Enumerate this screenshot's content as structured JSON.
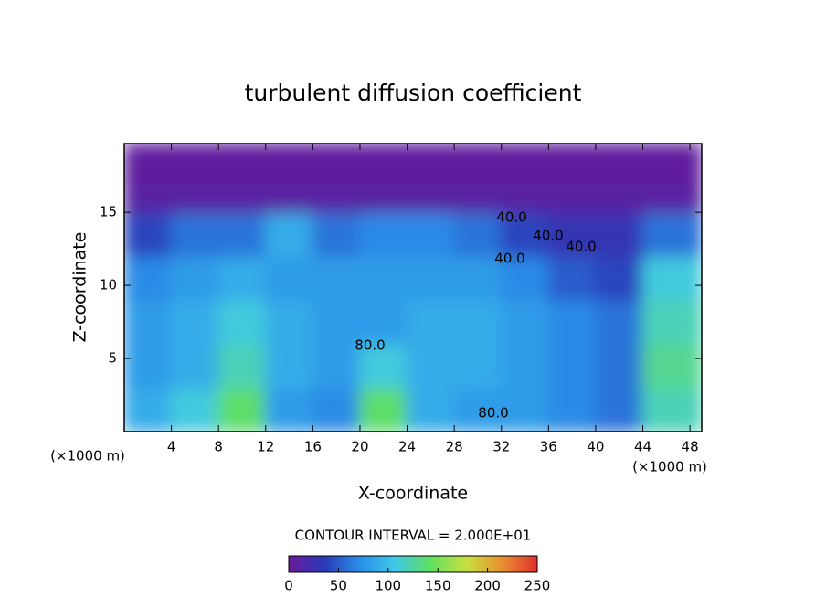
{
  "chart_data": {
    "type": "heatmap",
    "title": "turbulent diffusion coefficient",
    "xlabel": "X-coordinate",
    "ylabel": "Z-coordinate",
    "x_unit": "(×1000 m)",
    "y_unit": "(×1000 m)",
    "contour_interval": "CONTOUR INTERVAL = 2.000E+01",
    "contour_labels": [
      "40.0",
      "40.0",
      "40.0",
      "40.0",
      "80.0",
      "80.0"
    ],
    "xlim": [
      0,
      49
    ],
    "ylim": [
      0,
      19.7
    ],
    "xticks": [
      4,
      8,
      12,
      16,
      20,
      24,
      28,
      32,
      36,
      40,
      44,
      48
    ],
    "yticks": [
      5,
      10,
      15
    ],
    "x_edges": [
      0,
      4,
      8,
      12,
      16,
      20,
      24,
      28,
      32,
      36,
      40,
      44,
      49
    ],
    "y_edges": [
      0,
      3,
      6,
      9,
      12,
      15,
      17,
      19.7
    ],
    "z": [
      [
        90,
        110,
        140,
        80,
        70,
        140,
        90,
        80,
        80,
        70,
        60,
        120
      ],
      [
        80,
        90,
        120,
        90,
        80,
        110,
        90,
        90,
        80,
        70,
        60,
        130
      ],
      [
        80,
        90,
        110,
        90,
        80,
        80,
        90,
        90,
        80,
        70,
        60,
        120
      ],
      [
        70,
        80,
        90,
        80,
        80,
        80,
        80,
        80,
        70,
        50,
        40,
        110
      ],
      [
        40,
        60,
        60,
        90,
        60,
        70,
        70,
        60,
        40,
        30,
        30,
        60
      ],
      [
        10,
        10,
        10,
        10,
        10,
        10,
        10,
        10,
        10,
        10,
        10,
        10
      ],
      [
        5,
        5,
        5,
        5,
        5,
        5,
        5,
        5,
        5,
        5,
        5,
        5
      ]
    ],
    "zlim": [
      0,
      250
    ],
    "zticks": [
      0,
      50,
      100,
      150,
      200,
      250
    ],
    "colors": [
      "#6a1a9a",
      "#2a3ab8",
      "#2a8ee8",
      "#40c8e8",
      "#60e060",
      "#c8e040",
      "#e89030",
      "#e03030"
    ]
  }
}
